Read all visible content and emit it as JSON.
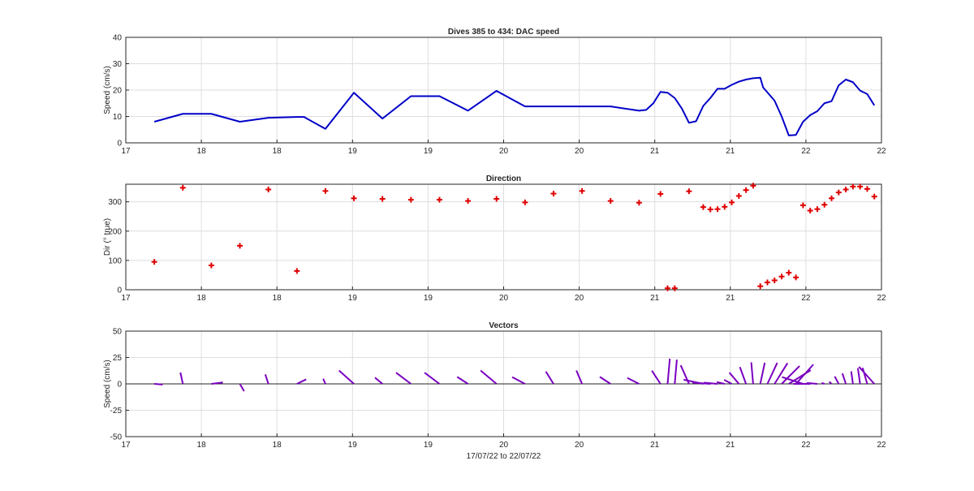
{
  "chart_data": [
    {
      "type": "line",
      "title": "Dives 385 to 434: DAC speed",
      "xlabel": "",
      "ylabel": "Speed (cm/s)",
      "xlim": [
        17.35,
        22.65
      ],
      "ylim": [
        0,
        40
      ],
      "x_tick_labels": [
        "17",
        "18",
        "18",
        "19",
        "19",
        "20",
        "20",
        "21",
        "21",
        "22",
        "22"
      ],
      "y_ticks": [
        0,
        10,
        20,
        30,
        40
      ],
      "grid": true,
      "color": "#0000c8",
      "series": [
        {
          "x": [
            17.55,
            17.75,
            17.95,
            18.15,
            18.35,
            18.55,
            18.6,
            18.75,
            18.95,
            19.15,
            19.35,
            19.55,
            19.75,
            19.95,
            20.15,
            20.35,
            20.55,
            20.75,
            20.95,
            21.0,
            21.05,
            21.1,
            21.15,
            21.2,
            21.25,
            21.3,
            21.35,
            21.4,
            21.45,
            21.5,
            21.55,
            21.6,
            21.65,
            21.7,
            21.75,
            21.8,
            21.82,
            21.9,
            21.95,
            22.0,
            22.05,
            22.1,
            22.15,
            22.2,
            22.25,
            22.3,
            22.35,
            22.4,
            22.45,
            22.5,
            22.55,
            22.6
          ],
          "y": [
            8,
            11,
            11,
            8,
            9.5,
            9.8,
            9.8,
            5.3,
            19,
            9.2,
            17.7,
            17.7,
            12.2,
            19.7,
            13.8,
            13.8,
            13.8,
            13.8,
            12.2,
            12.5,
            15,
            19.3,
            19,
            17,
            13,
            7.6,
            8.2,
            14,
            17,
            20.5,
            20.5,
            22,
            23.2,
            24,
            24.5,
            24.7,
            21,
            16,
            10,
            2.8,
            3,
            8,
            10.5,
            12,
            15,
            15.8,
            21.8,
            24,
            23,
            19.8,
            18.5,
            14.2
          ]
        }
      ]
    },
    {
      "type": "scatter",
      "title": "Direction",
      "xlabel": "",
      "ylabel": "Dir (° true)",
      "xlim": [
        17.35,
        22.65
      ],
      "ylim": [
        0,
        360
      ],
      "x_tick_labels": [
        "17",
        "18",
        "18",
        "19",
        "19",
        "20",
        "20",
        "21",
        "21",
        "22",
        "22"
      ],
      "y_ticks": [
        0,
        100,
        200,
        300
      ],
      "grid": true,
      "color": "#e00000",
      "marker": "+",
      "series": [
        {
          "x": [
            17.55,
            17.75,
            17.95,
            18.15,
            18.35,
            18.55,
            18.75,
            18.95,
            19.15,
            19.35,
            19.55,
            19.75,
            19.95,
            20.15,
            20.35,
            20.55,
            20.75,
            20.95,
            21.1,
            21.3,
            21.4,
            21.45,
            21.5,
            21.55,
            21.6,
            21.65,
            21.7,
            21.75,
            21.8,
            21.85,
            21.9,
            21.95,
            22.0,
            22.05,
            22.1,
            22.15,
            22.2,
            22.25,
            22.3,
            22.35,
            22.4,
            22.45,
            22.5,
            22.55,
            22.6,
            21.15,
            21.2
          ],
          "y": [
            95,
            348,
            83,
            150,
            342,
            64,
            337,
            312,
            310,
            307,
            307,
            303,
            310,
            298,
            328,
            337,
            303,
            297,
            327,
            336,
            282,
            274,
            275,
            283,
            298,
            320,
            340,
            355,
            12,
            25,
            32,
            45,
            58,
            42,
            288,
            270,
            275,
            290,
            312,
            332,
            342,
            352,
            352,
            344,
            318,
            5,
            5
          ]
        }
      ]
    },
    {
      "type": "line",
      "title": "Vectors",
      "xlabel": "17/07/22 to 22/07/22",
      "ylabel": "Speed (cm/s)",
      "xlim": [
        17.35,
        22.65
      ],
      "ylim": [
        -50,
        50
      ],
      "x_tick_labels": [
        "17",
        "18",
        "18",
        "19",
        "19",
        "20",
        "20",
        "21",
        "21",
        "22",
        "22"
      ],
      "y_ticks": [
        -50,
        -25,
        0,
        25,
        50
      ],
      "grid": true,
      "color": "#7a00c0",
      "note_series": "stick vectors: base (x,0) to tip (x+u*scale, v)",
      "series": [
        {
          "x": [
            17.55,
            17.75,
            17.95,
            18.15,
            18.35,
            18.55,
            18.75,
            18.95,
            19.15,
            19.35,
            19.55,
            19.75,
            19.95,
            20.15,
            20.35,
            20.55,
            20.75,
            20.95,
            21.1,
            21.3,
            21.4,
            21.45,
            21.5,
            21.55,
            21.6,
            21.65,
            21.7,
            21.75,
            21.8,
            21.85,
            21.9,
            21.95,
            22.0,
            22.05,
            22.1,
            22.15,
            22.2,
            22.25,
            22.3,
            22.35,
            22.4,
            22.45,
            22.5,
            22.55,
            22.6,
            21.15,
            21.2
          ],
          "speed": [
            8,
            11,
            11,
            8,
            9.5,
            9.8,
            5.3,
            19,
            9.2,
            17.7,
            17.7,
            12.2,
            19.7,
            13.8,
            13.8,
            13.8,
            12.2,
            12.5,
            15,
            19.3,
            19,
            17,
            13,
            7.6,
            8.2,
            14,
            17,
            20.5,
            20.5,
            22,
            23.2,
            24,
            24.5,
            24.7,
            21,
            16,
            10,
            2.8,
            3,
            8,
            10.5,
            12,
            15,
            15.8,
            21.8,
            24,
            23
          ],
          "direction": [
            95,
            348,
            83,
            150,
            342,
            64,
            337,
            312,
            310,
            307,
            307,
            303,
            310,
            298,
            328,
            337,
            303,
            297,
            327,
            336,
            282,
            274,
            275,
            283,
            298,
            320,
            340,
            355,
            12,
            25,
            32,
            45,
            58,
            42,
            288,
            270,
            275,
            290,
            312,
            332,
            342,
            352,
            352,
            344,
            318,
            5,
            5
          ]
        }
      ]
    }
  ]
}
